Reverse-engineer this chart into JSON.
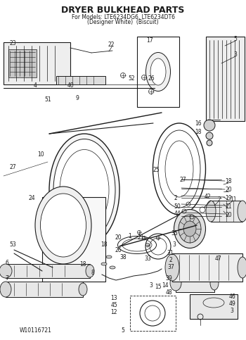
{
  "title": "DRYER BULKHEAD PARTS",
  "subtitle": "For Models: LTE6234DG6, LTE6234DT6",
  "subtitle2": "(Designer White)  (Biscuit)",
  "footer_left": "W10116721",
  "footer_center": "5",
  "bg_color": "#ffffff",
  "line_color": "#1a1a1a",
  "title_fontsize": 9,
  "subtitle_fontsize": 5.5,
  "footer_fontsize": 5.5,
  "label_fontsize": 5.5,
  "figsize": [
    3.5,
    4.83
  ],
  "dpi": 100
}
